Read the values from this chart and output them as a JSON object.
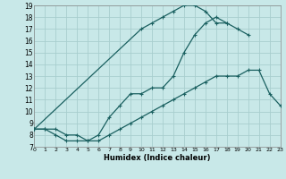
{
  "xlabel": "Humidex (Indice chaleur)",
  "xlim": [
    0,
    23
  ],
  "ylim": [
    7,
    19
  ],
  "xticks": [
    0,
    1,
    2,
    3,
    4,
    5,
    6,
    7,
    8,
    9,
    10,
    11,
    12,
    13,
    14,
    15,
    16,
    17,
    18,
    19,
    20,
    21,
    22,
    23
  ],
  "yticks": [
    7,
    8,
    9,
    10,
    11,
    12,
    13,
    14,
    15,
    16,
    17,
    18,
    19
  ],
  "bg_color": "#c8e8e8",
  "grid_color": "#a8cece",
  "line_color": "#1a6060",
  "line1_x": [
    0,
    1,
    2,
    3,
    4,
    5,
    6,
    7,
    8,
    9,
    10,
    11,
    12,
    13,
    14,
    15,
    16,
    17,
    18,
    19,
    20,
    21,
    22,
    23
  ],
  "line1_y": [
    8.5,
    8.5,
    8.5,
    8.0,
    8.0,
    7.5,
    7.5,
    8.0,
    8.5,
    9.0,
    9.5,
    10.0,
    10.5,
    11.0,
    11.5,
    12.0,
    12.5,
    13.0,
    13.0,
    13.0,
    13.5,
    13.5,
    11.5,
    10.5
  ],
  "line2_x": [
    0,
    1,
    2,
    3,
    4,
    5,
    6,
    7,
    8,
    9,
    10,
    11,
    12,
    13,
    14,
    15,
    16,
    17,
    18,
    19,
    20
  ],
  "line2_y": [
    8.5,
    8.5,
    8.0,
    7.5,
    7.5,
    7.5,
    8.0,
    9.5,
    10.5,
    11.5,
    11.5,
    12.0,
    12.0,
    13.0,
    15.0,
    16.5,
    17.5,
    18.0,
    17.5,
    17.0,
    16.5
  ],
  "line3_x": [
    0,
    10,
    11,
    12,
    13,
    14,
    15,
    16,
    17,
    18
  ],
  "line3_y": [
    8.5,
    17.0,
    17.5,
    18.0,
    18.5,
    19.0,
    19.0,
    18.5,
    17.5,
    17.5
  ]
}
